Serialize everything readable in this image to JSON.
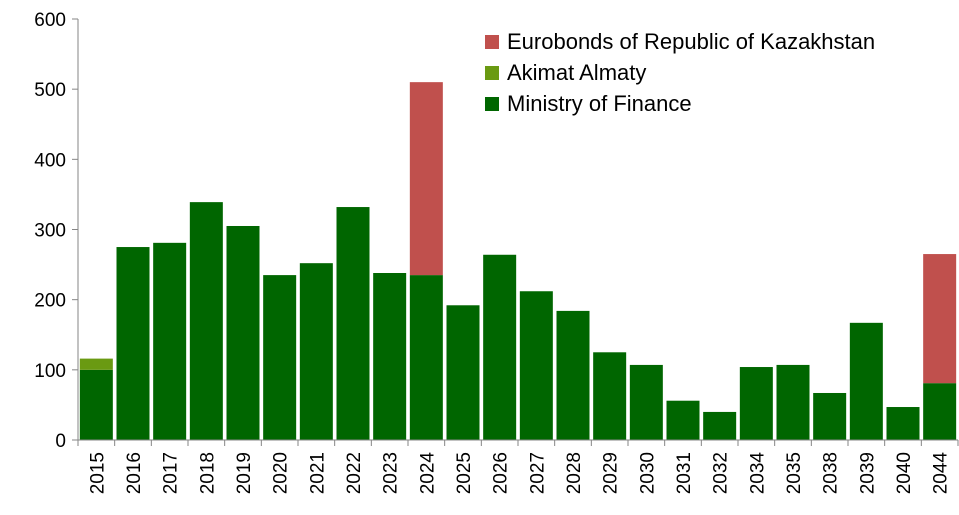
{
  "chart_data": {
    "type": "stacked_bar",
    "categories": [
      "2015",
      "2016",
      "2017",
      "2018",
      "2019",
      "2020",
      "2021",
      "2022",
      "2023",
      "2024",
      "2025",
      "2026",
      "2027",
      "2028",
      "2029",
      "2030",
      "2031",
      "2032",
      "2034",
      "2035",
      "2038",
      "2039",
      "2040",
      "2044"
    ],
    "series": [
      {
        "name": "Ministry of Finance",
        "color": "#006600",
        "values": [
          100,
          275,
          281,
          339,
          305,
          235,
          252,
          332,
          238,
          235,
          192,
          264,
          212,
          184,
          125,
          107,
          56,
          40,
          104,
          107,
          67,
          167,
          47,
          81
        ]
      },
      {
        "name": "Akimat Almaty",
        "color": "#6a9a12",
        "values": [
          16,
          null,
          null,
          null,
          null,
          null,
          null,
          null,
          null,
          null,
          null,
          null,
          null,
          null,
          null,
          null,
          null,
          null,
          null,
          null,
          null,
          null,
          null,
          null
        ]
      },
      {
        "name": "Eurobonds of Republic of Kazakhstan",
        "color": "#c0504d",
        "values": [
          null,
          null,
          null,
          null,
          null,
          null,
          null,
          null,
          null,
          275,
          null,
          null,
          null,
          null,
          null,
          null,
          null,
          null,
          null,
          null,
          null,
          null,
          null,
          184
        ]
      }
    ],
    "ylim": [
      0,
      600
    ],
    "yticks": [
      0,
      100,
      200,
      300,
      400,
      500,
      600
    ],
    "legend": "upper right"
  }
}
